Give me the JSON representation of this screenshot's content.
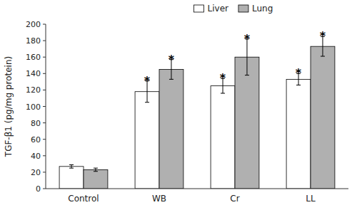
{
  "chart_data": {
    "type": "bar",
    "categories": [
      "Control",
      "WB",
      "Cr",
      "LL"
    ],
    "series": [
      {
        "name": "Liver",
        "color": "#ffffff",
        "values": [
          27,
          118,
          125,
          133
        ],
        "errors": [
          2,
          13,
          9,
          7
        ]
      },
      {
        "name": "Lung",
        "color": "#b0b0b0",
        "values": [
          23,
          145,
          160,
          173
        ],
        "errors": [
          2,
          12,
          22,
          12
        ]
      }
    ],
    "ylabel": "TGF-β1 (pg/mg protein)",
    "ylim": [
      0,
      200
    ],
    "yticks": [
      0,
      20,
      40,
      60,
      80,
      100,
      120,
      140,
      160,
      180,
      200
    ],
    "grid": false,
    "legend": "top",
    "annotations": [
      {
        "text": "*",
        "series": 0,
        "index": 1
      },
      {
        "text": "*",
        "series": 0,
        "index": 2
      },
      {
        "text": "*",
        "series": 0,
        "index": 3
      },
      {
        "text": "*",
        "series": 1,
        "index": 1
      },
      {
        "text": "*",
        "series": 1,
        "index": 2
      },
      {
        "text": "*",
        "series": 1,
        "index": 3
      }
    ]
  }
}
